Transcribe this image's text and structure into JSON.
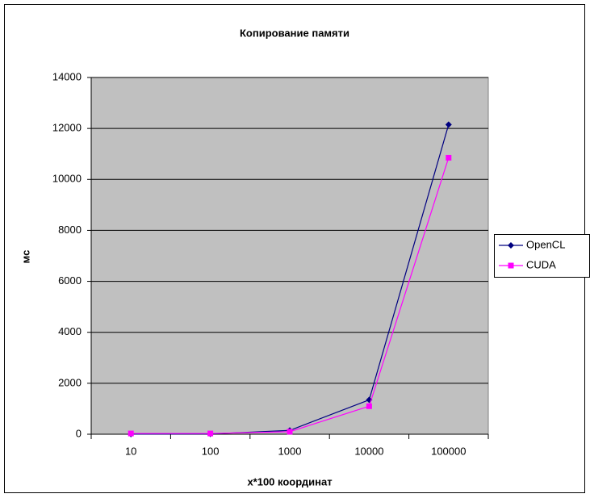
{
  "chart_data": {
    "type": "line",
    "title": "Копирование памяти",
    "x_label": "x*100 координат",
    "y_label": "мс",
    "categories": [
      "10",
      "100",
      "1000",
      "10000",
      "100000"
    ],
    "series": [
      {
        "name": "OpenCL",
        "color": "#000080",
        "marker": "diamond",
        "values": [
          5,
          10,
          150,
          1350,
          12150
        ]
      },
      {
        "name": "CUDA",
        "color": "#ff00ff",
        "marker": "square",
        "values": [
          30,
          30,
          100,
          1100,
          10850
        ]
      }
    ],
    "ylim": [
      0,
      14000
    ],
    "yticks": [
      0,
      2000,
      4000,
      6000,
      8000,
      10000,
      12000,
      14000
    ],
    "grid": true,
    "legend": "right"
  }
}
